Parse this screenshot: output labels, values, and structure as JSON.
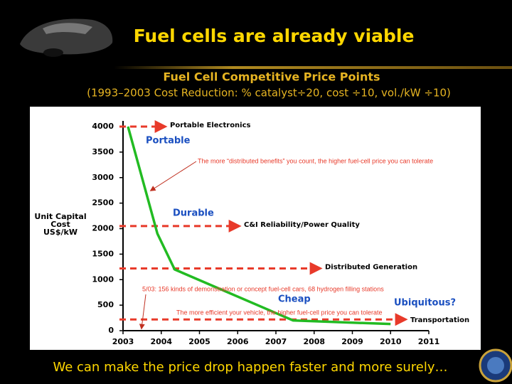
{
  "slide": {
    "title": "Fuel cells are already viable",
    "footer": "We can make the price drop happen faster and more surely…"
  },
  "chart_data": {
    "type": "line",
    "title": "Fuel Cell Competitive Price Points",
    "subtitle": "(1993–2003 Cost Reduction: % catalyst÷20, cost ÷10, vol./kW ÷10)",
    "y_label": [
      "Unit Capital",
      "Cost",
      "US$/kW"
    ],
    "x": [
      2003.13,
      2003.9,
      2004.35,
      2007.45,
      2010
    ],
    "series": [
      {
        "color": "#22bb22",
        "values": [
          4000,
          1900,
          1200,
          200,
          130
        ]
      }
    ],
    "xlim": [
      2003,
      2011
    ],
    "xticks": [
      2003,
      2004,
      2005,
      2006,
      2007,
      2008,
      2009,
      2010,
      2011
    ],
    "ylim": [
      0,
      4000
    ],
    "yticks": [
      0,
      500,
      1000,
      1500,
      2000,
      2500,
      3000,
      3500,
      4000
    ],
    "price_points": [
      {
        "label": "Portable Electronics",
        "value": 4000
      },
      {
        "label": "C&I Reliability/Power Quality",
        "value": 2050
      },
      {
        "label": "Distributed Generation",
        "value": 1220
      },
      {
        "label": "Transportation",
        "value": 220
      }
    ],
    "stage_labels": [
      "Portable",
      "Durable",
      "Cheap",
      "Ubiquitous?"
    ],
    "annotations": [
      "The more “distributed benefits” you count, the higher fuel-cell price you can tolerate",
      "5/03: 156 kinds of demonstration or concept fuel-cell cars, 68 hydrogen filling stations",
      "The more efficient your vehicle, the higher fuel-cell price you can tolerate"
    ]
  }
}
